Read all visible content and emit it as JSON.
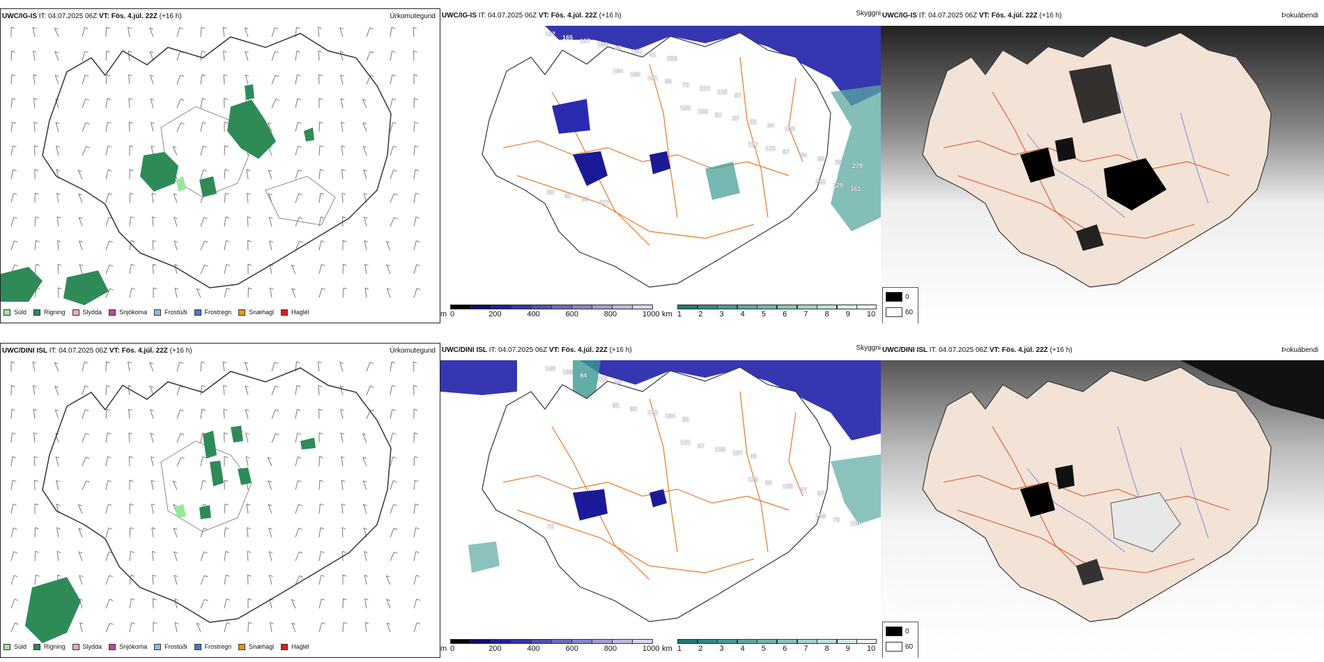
{
  "rows": [
    {
      "model": "UWC/IG-IS",
      "it_label": "IT:",
      "it_value": "04.07.2025 06Z",
      "vt_label": "VT:",
      "vt_value": "Fös. 4.júl. 22Z",
      "lead": "(+16 h)"
    },
    {
      "model": "UWC/DINI ISL",
      "it_label": "IT:",
      "it_value": "04.07.2025 06Z",
      "vt_label": "VT:",
      "vt_value": "Fös. 4.júl. 22Z",
      "lead": "(+16 h)"
    }
  ],
  "panel_types": {
    "precip": "Úrkomutegund",
    "ceiling": "Skyggni",
    "fog": "Þokuábendi"
  },
  "precip_legend": [
    {
      "label": "Súld",
      "color": "#98e898"
    },
    {
      "label": "Rigning",
      "color": "#2e8b57"
    },
    {
      "label": "Slydda",
      "color": "#f2a6c8"
    },
    {
      "label": "Snjókoma",
      "color": "#c0479a"
    },
    {
      "label": "Frostúði",
      "color": "#8fb8ea"
    },
    {
      "label": "Frostregn",
      "color": "#3f7fce"
    },
    {
      "label": "Snæhagl",
      "color": "#e8961e"
    },
    {
      "label": "Haglél",
      "color": "#e01b1b"
    }
  ],
  "ceiling_scale": {
    "unit": "m",
    "ticks": [
      "0",
      "200",
      "400",
      "600",
      "800",
      "1000"
    ],
    "colors": [
      "#000000",
      "#0c0c6e",
      "#1f1f96",
      "#3535a8",
      "#5050b4",
      "#6a6ac0",
      "#8484cc",
      "#9e9ed8",
      "#b8b8e4",
      "#d4d4f0"
    ]
  },
  "visibility_scale": {
    "unit": "km",
    "ticks": [
      "1",
      "2",
      "3",
      "4",
      "5",
      "6",
      "7",
      "8",
      "9",
      "10"
    ],
    "colors": [
      "#1d7a74",
      "#2f8a84",
      "#449a94",
      "#5aa8a2",
      "#70b6b0",
      "#88c4bf",
      "#a0d2cd",
      "#b9e0dc",
      "#d2edea",
      "#eaf7f5"
    ]
  },
  "fog_legend": [
    {
      "label": "0",
      "color": "#000000"
    },
    {
      "label": "60",
      "color": "#ffffff"
    }
  ],
  "colors": {
    "rain": "#2e8b57",
    "ceiling_low": "#1a1aa0",
    "visibility": "#3a9a92",
    "roads": "#e8782a",
    "land_fog": "#f3e3d6",
    "rivers": "#6f86e6"
  },
  "ceiling_labels_top": [
    "157",
    "104",
    "163",
    "727",
    "262",
    "165",
    "180",
    "206",
    "123",
    "129",
    "107",
    "101",
    "81",
    "67",
    "161",
    "104",
    "89",
    "87",
    "94",
    "90",
    "68",
    "73",
    "52",
    "63",
    "81",
    "152",
    "222",
    "34",
    "39",
    "60",
    "41",
    "115",
    "103",
    "279",
    "277",
    "293",
    "97"
  ],
  "ceiling_labels_bottom": [
    "108",
    "91",
    "131",
    "139",
    "190",
    "186",
    "96",
    "97",
    "90",
    "79",
    "84",
    "122",
    "138",
    "135",
    "110",
    "115",
    "104",
    "107",
    "97",
    "72",
    "94",
    "92",
    "45",
    "67"
  ]
}
